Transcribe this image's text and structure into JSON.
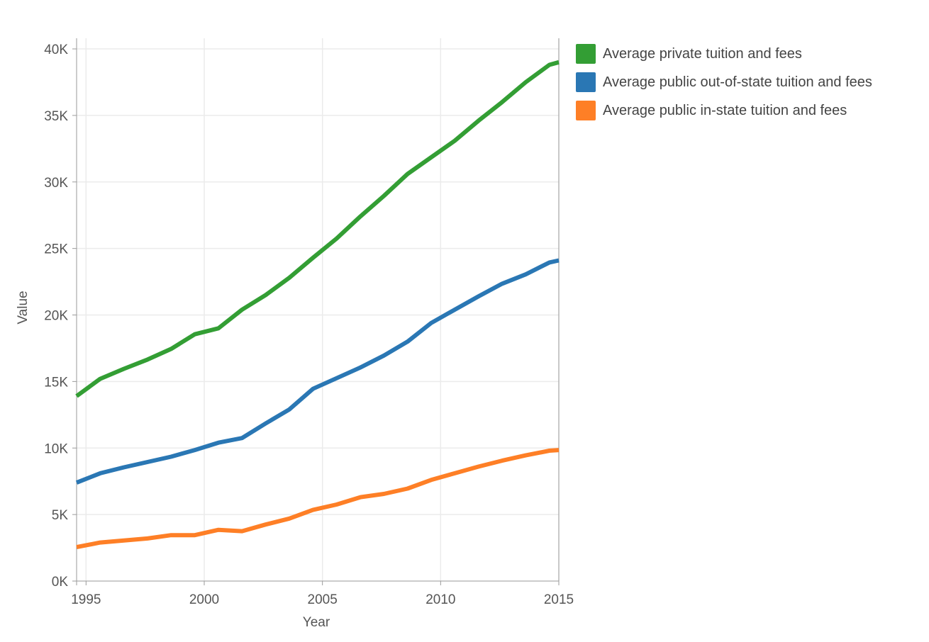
{
  "chart_data": {
    "type": "line",
    "xlabel": "Year",
    "ylabel": "Value",
    "xlim": [
      1994.6,
      2015
    ],
    "ylim": [
      0,
      40800
    ],
    "x_ticks": [
      1995,
      2000,
      2005,
      2010,
      2015
    ],
    "y_ticks": [
      0,
      5000,
      10000,
      15000,
      20000,
      25000,
      30000,
      35000,
      40000
    ],
    "y_tick_labels": [
      "0K",
      "5K",
      "10K",
      "15K",
      "20K",
      "25K",
      "30K",
      "35K",
      "40K"
    ],
    "grid": true,
    "legend_position": "top-right",
    "x": [
      1994.6,
      1995.6,
      1996.6,
      1997.6,
      1998.6,
      1999.6,
      2000.6,
      2001.6,
      2002.6,
      2003.6,
      2004.6,
      2005.6,
      2006.6,
      2007.6,
      2008.6,
      2009.6,
      2010.6,
      2011.6,
      2012.6,
      2013.6,
      2014.6,
      2015
    ],
    "series": [
      {
        "name": "Average private tuition and fees",
        "color": "#339e34",
        "values": [
          13900,
          15200,
          15950,
          16650,
          17450,
          18550,
          19000,
          20400,
          21500,
          22800,
          24300,
          25750,
          27400,
          28950,
          30600,
          31850,
          33100,
          34600,
          36000,
          37500,
          38800,
          39000
        ]
      },
      {
        "name": "Average public out-of-state tuition and fees",
        "color": "#2a77b4",
        "values": [
          7400,
          8100,
          8550,
          8950,
          9350,
          9850,
          10400,
          10750,
          11850,
          12900,
          14450,
          15250,
          16050,
          16950,
          18000,
          19400,
          20400,
          21400,
          22350,
          23050,
          23950,
          24100
        ]
      },
      {
        "name": "Average public in-state tuition and fees",
        "color": "#fe7f26",
        "values": [
          2550,
          2900,
          3050,
          3200,
          3450,
          3450,
          3850,
          3750,
          4250,
          4700,
          5350,
          5750,
          6300,
          6550,
          6950,
          7600,
          8100,
          8600,
          9050,
          9450,
          9800,
          9850
        ]
      }
    ]
  }
}
